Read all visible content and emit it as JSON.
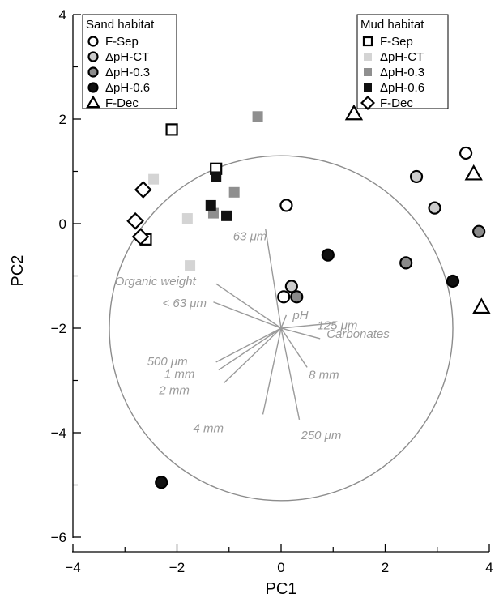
{
  "chart_data": {
    "type": "scatter",
    "xlabel": "PC1",
    "ylabel": "PC2",
    "xlim": [
      -4,
      4
    ],
    "ylim": [
      -6,
      4
    ],
    "xticks": [
      -4,
      -2,
      0,
      2,
      4
    ],
    "yticks": [
      -6,
      -4,
      -2,
      0,
      2,
      4
    ],
    "x_tick_labels": [
      "−4",
      "−2",
      "0",
      "2",
      "4"
    ],
    "y_tick_labels": [
      "−6",
      "−4",
      "−2",
      "0",
      "2",
      "4"
    ],
    "grid": false,
    "legends": [
      {
        "title": "Sand habitat",
        "position": "top-left",
        "items": [
          {
            "label": "F-Sep",
            "marker": "circle",
            "fill": "#ffffff"
          },
          {
            "label": "ΔpH-CT",
            "marker": "circle",
            "fill": "#cccccc"
          },
          {
            "label": "ΔpH-0.3",
            "marker": "circle",
            "fill": "#8a8a8a"
          },
          {
            "label": "ΔpH-0.6",
            "marker": "circle",
            "fill": "#111111"
          },
          {
            "label": "F-Dec",
            "marker": "triangle",
            "fill": "#ffffff"
          }
        ]
      },
      {
        "title": "Mud habitat",
        "position": "top-right",
        "items": [
          {
            "label": "F-Sep",
            "marker": "square-open",
            "fill": "#ffffff"
          },
          {
            "label": "ΔpH-CT",
            "marker": "square",
            "fill": "#d4d4d4"
          },
          {
            "label": "ΔpH-0.3",
            "marker": "square",
            "fill": "#8f8f8f"
          },
          {
            "label": "ΔpH-0.6",
            "marker": "square",
            "fill": "#111111"
          },
          {
            "label": "F-Dec",
            "marker": "diamond",
            "fill": "#ffffff"
          }
        ]
      }
    ],
    "series": [
      {
        "habitat": "Sand",
        "marker": "circle",
        "fill": "#ffffff",
        "points": [
          [
            3.55,
            1.35
          ],
          [
            0.1,
            0.35
          ],
          [
            0.05,
            -1.4
          ]
        ]
      },
      {
        "habitat": "Sand",
        "marker": "circle",
        "fill": "#cccccc",
        "points": [
          [
            2.6,
            0.9
          ],
          [
            2.95,
            0.3
          ],
          [
            0.2,
            -1.2
          ]
        ]
      },
      {
        "habitat": "Sand",
        "marker": "circle",
        "fill": "#8a8a8a",
        "points": [
          [
            3.8,
            -0.15
          ],
          [
            2.4,
            -0.75
          ],
          [
            0.3,
            -1.4
          ]
        ]
      },
      {
        "habitat": "Sand",
        "marker": "circle",
        "fill": "#111111",
        "points": [
          [
            0.9,
            -0.6
          ],
          [
            3.3,
            -1.1
          ],
          [
            -2.3,
            -4.95
          ]
        ]
      },
      {
        "habitat": "Sand",
        "marker": "triangle",
        "fill": "#ffffff",
        "points": [
          [
            1.4,
            2.1
          ],
          [
            3.7,
            0.95
          ],
          [
            3.85,
            -1.6
          ]
        ]
      },
      {
        "habitat": "Mud",
        "marker": "square-open",
        "fill": "#ffffff",
        "points": [
          [
            -2.1,
            1.8
          ],
          [
            -1.25,
            1.05
          ],
          [
            -2.6,
            -0.3
          ]
        ]
      },
      {
        "habitat": "Mud",
        "marker": "square",
        "fill": "#d4d4d4",
        "points": [
          [
            -2.45,
            0.85
          ],
          [
            -1.8,
            0.1
          ],
          [
            -1.75,
            -0.8
          ]
        ]
      },
      {
        "habitat": "Mud",
        "marker": "square",
        "fill": "#8f8f8f",
        "points": [
          [
            -0.45,
            2.05
          ],
          [
            -0.9,
            0.6
          ],
          [
            -1.3,
            0.2
          ]
        ]
      },
      {
        "habitat": "Mud",
        "marker": "square",
        "fill": "#111111",
        "points": [
          [
            -1.25,
            0.9
          ],
          [
            -1.35,
            0.35
          ],
          [
            -1.05,
            0.15
          ]
        ]
      },
      {
        "habitat": "Mud",
        "marker": "diamond",
        "fill": "#ffffff",
        "points": [
          [
            -2.65,
            0.65
          ],
          [
            -2.8,
            0.05
          ],
          [
            -2.7,
            -0.25
          ]
        ]
      }
    ],
    "correlation_circle": {
      "center": [
        0.0,
        -2.0
      ],
      "radius": 3.3,
      "color": "#8c8c8c"
    },
    "loadings": {
      "origin": [
        0.0,
        -2.0
      ],
      "color": "#9a9a9a",
      "vectors": [
        {
          "label": "63 μm",
          "end": [
            -0.3,
            -0.1
          ]
        },
        {
          "label": "Organic weight",
          "end": [
            -1.25,
            -1.15
          ]
        },
        {
          "label": "< 63 μm",
          "end": [
            -1.3,
            -1.5
          ]
        },
        {
          "label": "pH",
          "end": [
            0.1,
            -1.75
          ]
        },
        {
          "label": "Carbonates",
          "end": [
            0.75,
            -2.2
          ]
        },
        {
          "label": "125 μm",
          "end": [
            1.05,
            -1.9
          ]
        },
        {
          "label": "500 μm",
          "end": [
            -1.25,
            -2.65
          ]
        },
        {
          "label": "1 mm",
          "end": [
            -1.2,
            -2.8
          ]
        },
        {
          "label": "2 mm",
          "end": [
            -1.1,
            -3.05
          ]
        },
        {
          "label": "8 mm",
          "end": [
            0.5,
            -2.75
          ]
        },
        {
          "label": "4 mm",
          "end": [
            -0.35,
            -3.65
          ]
        },
        {
          "label": "250 μm",
          "end": [
            0.35,
            -3.75
          ]
        }
      ]
    }
  }
}
